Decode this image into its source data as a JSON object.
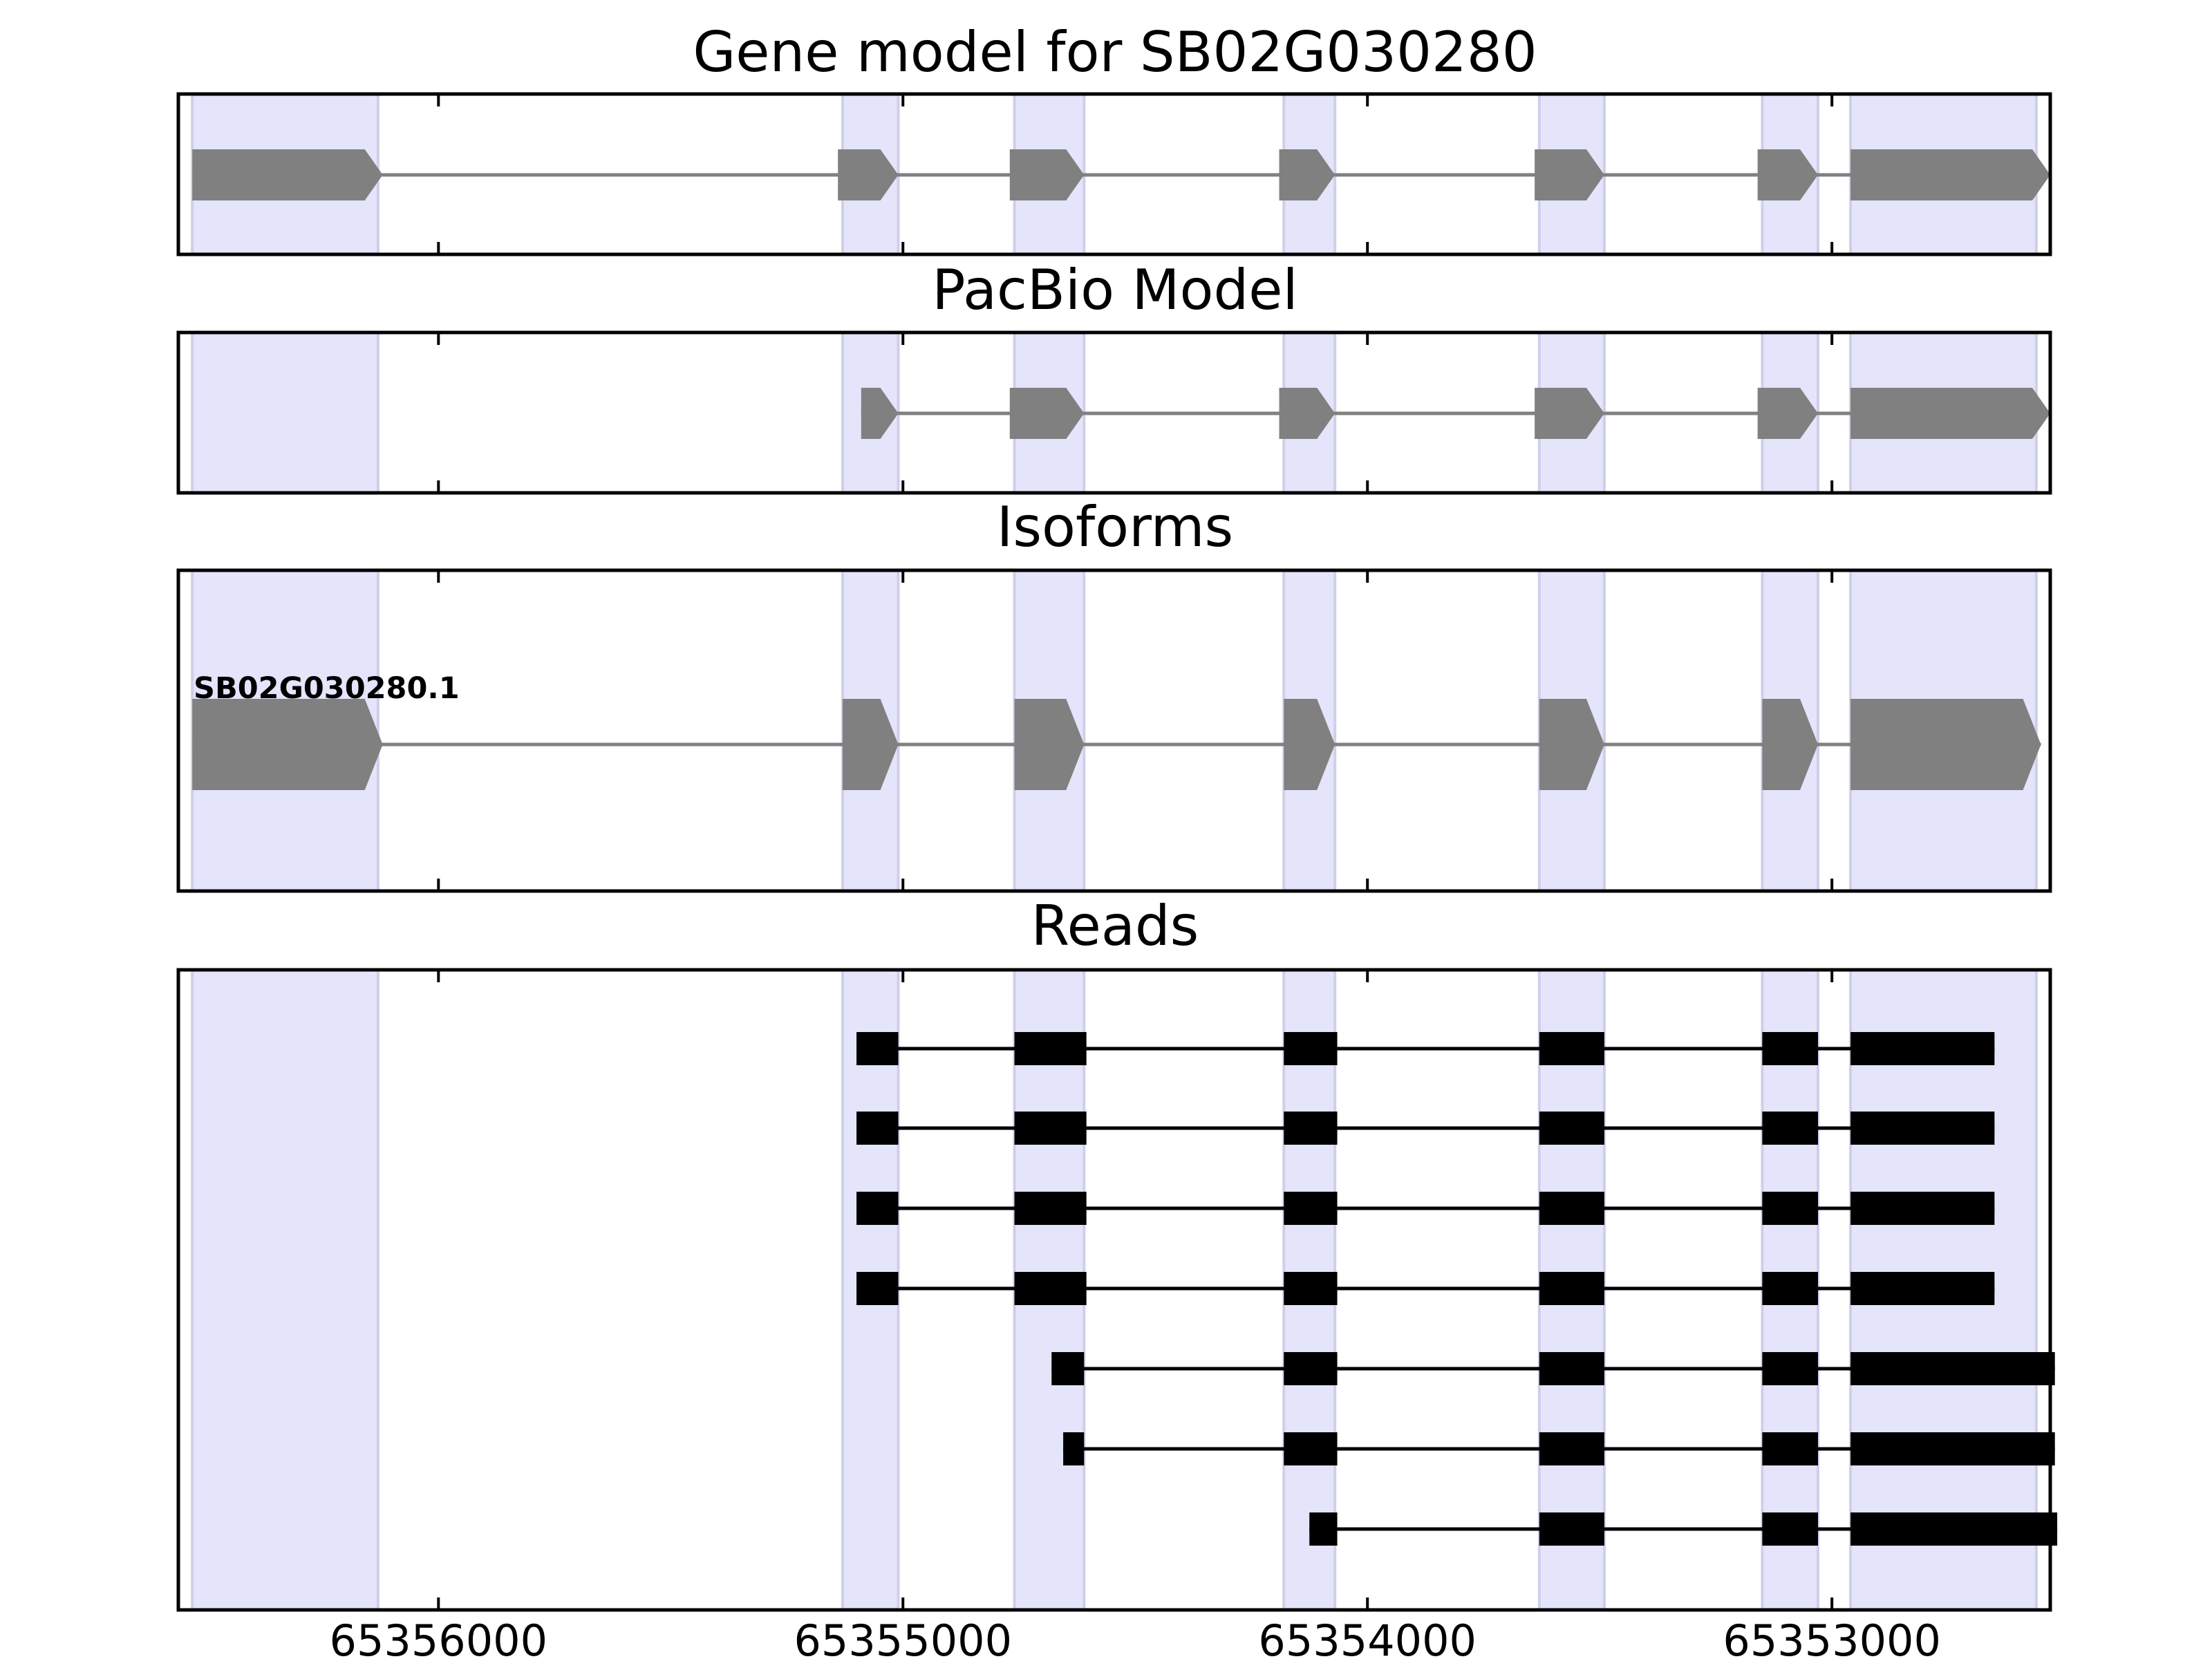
{
  "colors": {
    "background": "#ffffff",
    "exon_band": "#e4e4fb",
    "band_edge": "#cfcfea",
    "model_feature": "#808080",
    "read_feature": "#000000",
    "frame": "#000000"
  },
  "x_axis": {
    "range": [
      65356560,
      65352530
    ],
    "reversed": true,
    "ticks": [
      65356000,
      65355000,
      65354000,
      65353000
    ],
    "tick_labels": [
      "65356000",
      "65355000",
      "65354000",
      "65353000"
    ]
  },
  "exon_bands": [
    [
      65356530,
      65356130
    ],
    [
      65355130,
      65355010
    ],
    [
      65354760,
      65354610
    ],
    [
      65354180,
      65354070
    ],
    [
      65353630,
      65353490
    ],
    [
      65353150,
      65353030
    ],
    [
      65352960,
      65352560
    ]
  ],
  "panels": [
    {
      "id": "gene-model",
      "title": "Gene model for SB02G030280",
      "features": [
        {
          "exons": [
            [
              65356530,
              65356120
            ],
            [
              65355140,
              65355010
            ],
            [
              65354770,
              65354610
            ],
            [
              65354190,
              65354070
            ],
            [
              65353640,
              65353490
            ],
            [
              65353160,
              65353030
            ],
            [
              65352960,
              65352530
            ]
          ]
        }
      ]
    },
    {
      "id": "pacbio-model",
      "title": "PacBio Model",
      "features": [
        {
          "exons": [
            [
              65355090,
              65355010
            ],
            [
              65354770,
              65354610
            ],
            [
              65354190,
              65354070
            ],
            [
              65353640,
              65353490
            ],
            [
              65353160,
              65353030
            ],
            [
              65352960,
              65352530
            ]
          ]
        }
      ]
    },
    {
      "id": "isoforms",
      "title": "Isoforms",
      "features": [
        {
          "label": "SB02G030280.1",
          "exons": [
            [
              65356530,
              65356120
            ],
            [
              65355130,
              65355010
            ],
            [
              65354760,
              65354610
            ],
            [
              65354180,
              65354070
            ],
            [
              65353630,
              65353490
            ],
            [
              65353150,
              65353030
            ],
            [
              65352960,
              65352550
            ]
          ]
        }
      ]
    },
    {
      "id": "reads",
      "title": "Reads",
      "features": [
        {
          "exons": [
            [
              65355100,
              65355010
            ],
            [
              65354760,
              65354605
            ],
            [
              65354180,
              65354065
            ],
            [
              65353630,
              65353490
            ],
            [
              65353150,
              65353030
            ],
            [
              65352960,
              65352650
            ]
          ]
        },
        {
          "exons": [
            [
              65355100,
              65355010
            ],
            [
              65354760,
              65354605
            ],
            [
              65354180,
              65354065
            ],
            [
              65353630,
              65353490
            ],
            [
              65353150,
              65353030
            ],
            [
              65352960,
              65352650
            ]
          ]
        },
        {
          "exons": [
            [
              65355100,
              65355010
            ],
            [
              65354760,
              65354605
            ],
            [
              65354180,
              65354065
            ],
            [
              65353630,
              65353490
            ],
            [
              65353150,
              65353030
            ],
            [
              65352960,
              65352650
            ]
          ]
        },
        {
          "exons": [
            [
              65355100,
              65355010
            ],
            [
              65354760,
              65354605
            ],
            [
              65354180,
              65354065
            ],
            [
              65353630,
              65353490
            ],
            [
              65353150,
              65353030
            ],
            [
              65352960,
              65352650
            ]
          ]
        },
        {
          "exons": [
            [
              65354680,
              65354610
            ],
            [
              65354180,
              65354065
            ],
            [
              65353630,
              65353490
            ],
            [
              65353150,
              65353030
            ],
            [
              65352960,
              65352520
            ]
          ]
        },
        {
          "exons": [
            [
              65354655,
              65354610
            ],
            [
              65354180,
              65354065
            ],
            [
              65353630,
              65353490
            ],
            [
              65353150,
              65353030
            ],
            [
              65352960,
              65352520
            ]
          ]
        },
        {
          "exons": [
            [
              65354125,
              65354065
            ],
            [
              65353630,
              65353490
            ],
            [
              65353150,
              65353030
            ],
            [
              65352960,
              65352515
            ]
          ]
        }
      ]
    }
  ]
}
